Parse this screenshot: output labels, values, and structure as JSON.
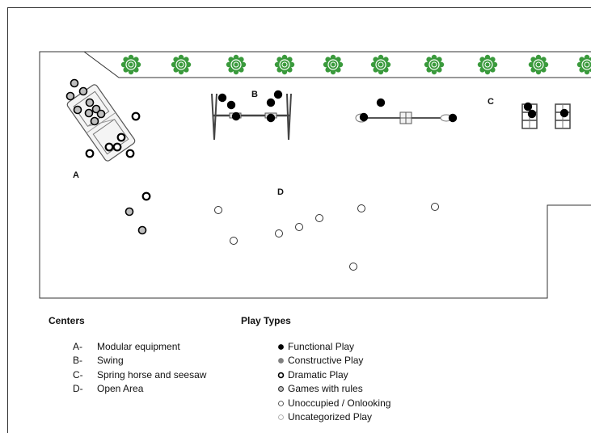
{
  "map_labels": {
    "a": "A",
    "b": "B",
    "c": "C",
    "d": "D"
  },
  "legend": {
    "centers_title": "Centers",
    "centers": [
      {
        "key": "A-",
        "name": "Modular equipment"
      },
      {
        "key": "B-",
        "name": "Swing"
      },
      {
        "key": "C-",
        "name": "Spring horse and seesaw"
      },
      {
        "key": "D-",
        "name": "Open Area"
      }
    ],
    "play_types_title": "Play Types",
    "play_types": [
      {
        "id": "functional",
        "label": "Functional Play",
        "marker": "solid black dot"
      },
      {
        "id": "constructive",
        "label": "Constructive Play",
        "marker": "gray dot"
      },
      {
        "id": "dramatic",
        "label": "Dramatic Play",
        "marker": "thick black ring"
      },
      {
        "id": "games",
        "label": "Games with rules",
        "marker": "gray filled ring"
      },
      {
        "id": "unoccupied",
        "label": "Unoccupied / Onlooking",
        "marker": "thin ring"
      },
      {
        "id": "uncategorized",
        "label": "Uncategorized Play",
        "marker": "light gray ring"
      }
    ]
  },
  "colors": {
    "functional": "#000000",
    "constructive": "#7f7f7f",
    "games_fill": "#bfbfbf",
    "uncategorized": "#c8c8c8",
    "shrub": "#3a9a3c",
    "outline": "#333333"
  },
  "observations": {
    "center_a": [
      {
        "type": "games",
        "count": 11
      },
      {
        "type": "dramatic",
        "count": 6
      }
    ],
    "center_b": [
      {
        "type": "functional",
        "count": 8
      }
    ],
    "center_c": [
      {
        "type": "functional",
        "count": 5
      }
    ],
    "center_d": [
      {
        "type": "unoccupied",
        "count": 10
      }
    ],
    "between_a_and_d": [
      {
        "type": "games",
        "count": 3
      }
    ]
  }
}
